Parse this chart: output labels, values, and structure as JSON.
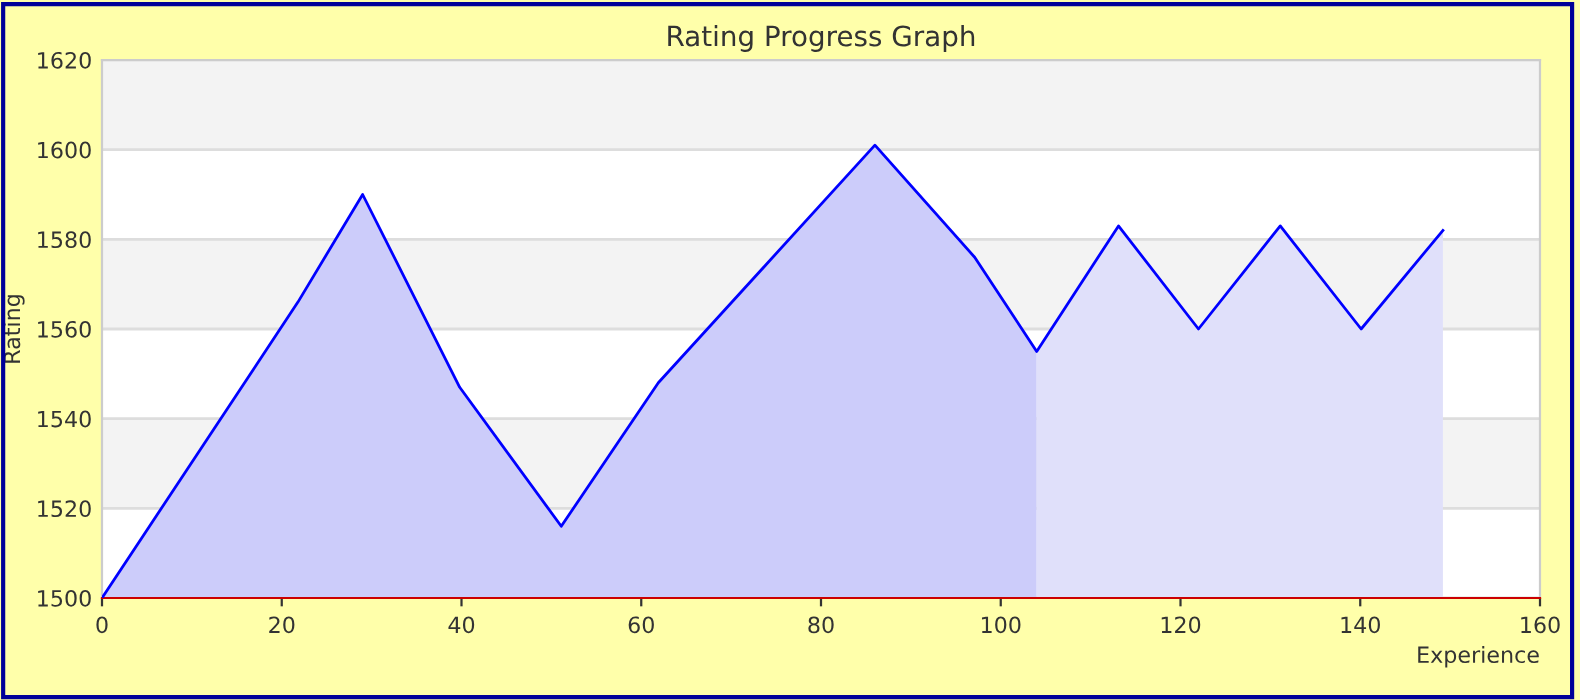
{
  "chart_data": {
    "type": "area",
    "title": "Rating Progress Graph",
    "xlabel": "Experience",
    "ylabel": "Rating",
    "series": [
      {
        "color": "#ccccfa",
        "x": [
          0,
          21.8,
          29,
          39.8,
          51.1,
          61.9,
          86,
          97.1,
          104
        ],
        "values": [
          1500,
          1566,
          1590,
          1547,
          1516,
          1548,
          1601,
          1576,
          1555
        ]
      },
      {
        "color": "#e0e0fa",
        "x": [
          104,
          113.1,
          122,
          131.1,
          140.1,
          149.2
        ],
        "values": [
          1555,
          1583,
          1560,
          1583,
          1560,
          1582
        ]
      },
      {
        "type": "line",
        "color": "#0000ff",
        "x": [
          0,
          21.8,
          29,
          39.8,
          51.1,
          61.9,
          86,
          97.1,
          104,
          113.1,
          122,
          131.1,
          140.1,
          149.2
        ],
        "values": [
          1500,
          1566,
          1590,
          1547,
          1516,
          1548,
          1601,
          1576,
          1555,
          1583,
          1560,
          1583,
          1560,
          1582
        ]
      }
    ],
    "xlim": [
      0,
      160
    ],
    "xticks": [
      0,
      20,
      40,
      60,
      80,
      100,
      120,
      140,
      160
    ],
    "ylim": [
      1500,
      1620
    ],
    "yticks": [
      1500,
      1520,
      1540,
      1560,
      1580,
      1600,
      1620
    ],
    "grid": "y"
  }
}
